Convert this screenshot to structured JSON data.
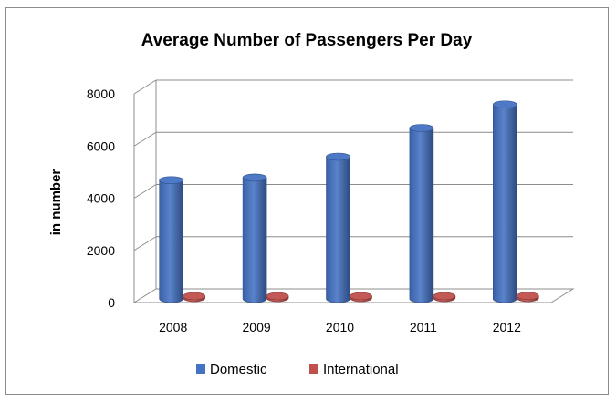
{
  "chart_data": {
    "type": "bar",
    "title": "Average Number of Passengers Per Day",
    "ylabel": "in number",
    "xlabel": "",
    "categories": [
      "2008",
      "2009",
      "2010",
      "2011",
      "2012"
    ],
    "series": [
      {
        "name": "Domestic",
        "values": [
          4550,
          4650,
          5450,
          6550,
          7450
        ],
        "color": "#4472c4"
      },
      {
        "name": "International",
        "values": [
          60,
          60,
          60,
          70,
          80
        ],
        "color": "#c0504d"
      }
    ],
    "ylim": [
      0,
      8000
    ],
    "yticks": [
      "0",
      "2000",
      "4000",
      "6000",
      "8000"
    ],
    "grid": true,
    "legend_position": "bottom",
    "style": "3d-cylinder"
  }
}
